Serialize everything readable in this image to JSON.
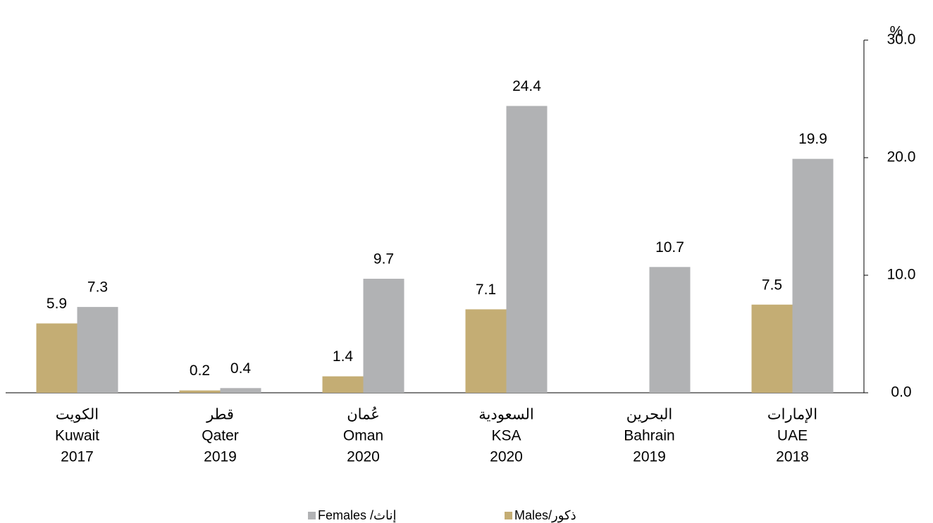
{
  "chart_data": {
    "type": "bar",
    "unit_label": "%",
    "categories": [
      [
        "الكويت",
        "Kuwait",
        "2017"
      ],
      [
        "قطر",
        "Qater",
        "2019"
      ],
      [
        "عُمان",
        "Oman",
        "2020"
      ],
      [
        "السعودية",
        "KSA",
        "2020"
      ],
      [
        "البحرين",
        "Bahrain",
        "2019"
      ],
      [
        "الإمارات",
        "UAE",
        "2018"
      ]
    ],
    "series": [
      {
        "name": "ذكور/Males",
        "color": "#c4ad74",
        "values": [
          5.9,
          0.2,
          1.4,
          7.1,
          null,
          7.5
        ]
      },
      {
        "name": "إناث/ Females",
        "color": "#b1b2b4",
        "values": [
          7.3,
          0.4,
          9.7,
          24.4,
          10.7,
          19.9
        ]
      }
    ],
    "ylim": [
      0,
      30
    ],
    "yticks": [
      {
        "value": 0,
        "label": "0.0"
      },
      {
        "value": 10,
        "label": "10.0"
      },
      {
        "value": 20,
        "label": "20.0"
      },
      {
        "value": 30,
        "label": "30.0"
      }
    ],
    "y_axis_side": "right",
    "grid": false
  }
}
